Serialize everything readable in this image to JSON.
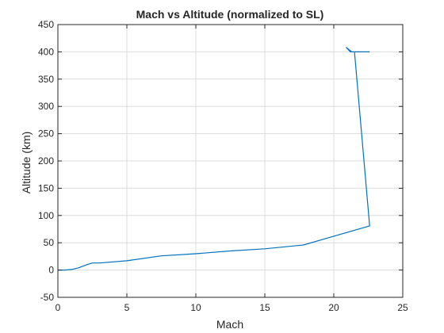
{
  "chart_data": {
    "type": "line",
    "title": "Mach vs Altitude (normalized to SL)",
    "xlabel": "Mach",
    "ylabel": "Altitude (km)",
    "xlim": [
      0,
      25
    ],
    "ylim": [
      -50,
      450
    ],
    "xticks": [
      0,
      5,
      10,
      15,
      20,
      25
    ],
    "yticks": [
      -50,
      0,
      50,
      100,
      150,
      200,
      250,
      300,
      350,
      400,
      450
    ],
    "grid": true,
    "series": [
      {
        "color": "#0072BD",
        "x": [
          0,
          0.5,
          1.0,
          1.5,
          2.0,
          2.5,
          3.0,
          5.0,
          7.5,
          10.0,
          12.5,
          15.0,
          17.8,
          20.0,
          22.6,
          21.5,
          21.2,
          20.9,
          21.1,
          21.3,
          22.6
        ],
        "y": [
          0,
          0,
          1,
          4,
          9,
          13,
          13,
          17,
          26,
          30,
          35,
          39,
          46,
          62,
          81,
          400,
          400,
          408,
          404,
          400,
          400
        ]
      }
    ]
  }
}
